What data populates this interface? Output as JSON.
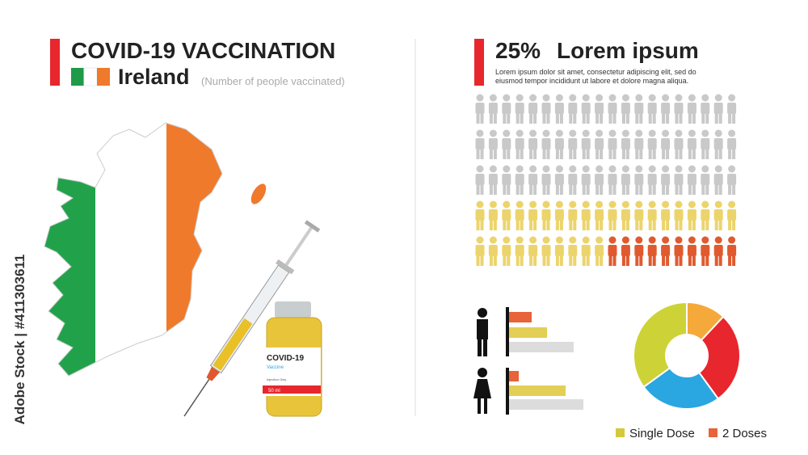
{
  "header": {
    "title": "COVID-19 VACCINATION",
    "country": "Ireland",
    "subtitle": "(Number of people vaccinated)"
  },
  "stat": {
    "percent": "25%",
    "heading": "Lorem ipsum",
    "lines": [
      "Lorem ipsum dolor sit amet, consectetur adipiscing elit, sed do",
      "eiusmod tempor incididunt ut labore et dolore magna aliqua."
    ]
  },
  "vial": {
    "title": "COVID-19",
    "subtitle": "Vaccine",
    "note": "Injection Only",
    "volume": "50 ml"
  },
  "people": {
    "groups": [
      {
        "count": 60,
        "color": "#c9c9c9"
      },
      {
        "count": 30,
        "color": "#ecd46c"
      },
      {
        "count": 10,
        "color": "#e05a2f"
      }
    ]
  },
  "bars": {
    "colors": [
      "#e8623a",
      "#e3cf55",
      "#dcdcdc"
    ],
    "groups": [
      {
        "values": [
          28,
          47,
          80
        ]
      },
      {
        "values": [
          12,
          70,
          92
        ]
      }
    ]
  },
  "donut": {
    "values": [
      12,
      28,
      25,
      35
    ],
    "colors": [
      "#f4a93a",
      "#e8262d",
      "#2aa6e0",
      "#cdd336"
    ]
  },
  "legend": [
    {
      "label": "Single Dose",
      "color": "#d4c93b"
    },
    {
      "label": "2 Doses",
      "color": "#e8623a"
    }
  ],
  "watermark": "Adobe Stock | #411303611"
}
